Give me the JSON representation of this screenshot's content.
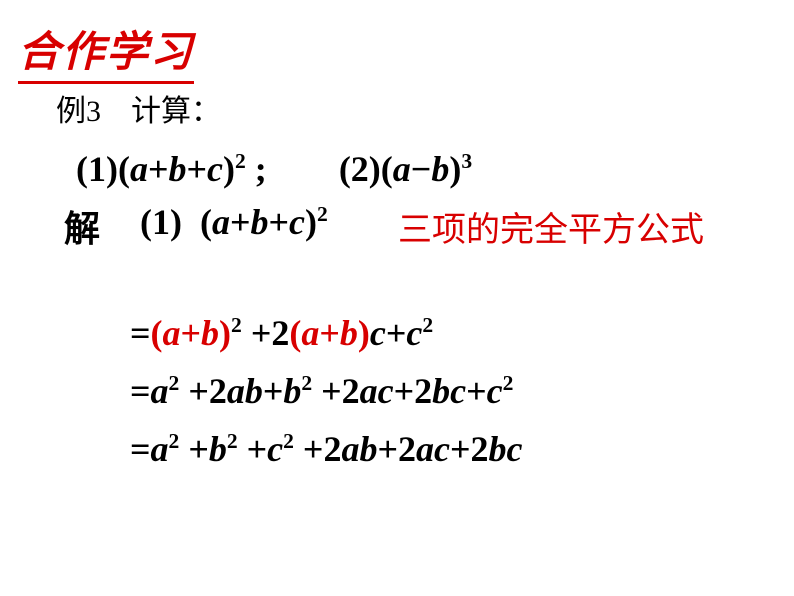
{
  "header": {
    "title": "合作学习",
    "color": "#d80000",
    "fontsize_pt": 32
  },
  "example": {
    "label": "例3　计算：",
    "color": "#000000",
    "fontsize_pt": 22
  },
  "problems": {
    "p1_num": "(1)",
    "p1_open": "(",
    "p1_a": "a",
    "p1_plus1": "+",
    "p1_b": "b",
    "p1_plus2": "+",
    "p1_c": "c",
    "p1_close": ")",
    "p1_exp": "2",
    "p1_semi": " ;",
    "gap": "　　",
    "p2_num": "(2)",
    "p2_open": "(",
    "p2_a": "a",
    "p2_minus": "−",
    "p2_b": "b",
    "p2_close": ")",
    "p2_exp": "3"
  },
  "solution": {
    "label": "解",
    "num": "(1)",
    "expr_open": "(",
    "expr_a": "a",
    "expr_p1": "+",
    "expr_b": "b",
    "expr_p2": "+",
    "expr_c": "c",
    "expr_close": ")",
    "expr_exp": "2",
    "formula_name": "三项的完全平方公式",
    "formula_color": "#d80000"
  },
  "steps": {
    "s1": {
      "eq": "=",
      "g1_open": "(",
      "g1_a": "a",
      "g1_plus": "+",
      "g1_b": "b",
      "g1_close": ")",
      "g1_exp": "2",
      "plus1": " +",
      "two": "2",
      "g2_open": "(",
      "g2_a": "a",
      "g2_plus": "+",
      "g2_b": "b",
      "g2_close": ")",
      "c": "c",
      "plus2": "+",
      "c2": "c",
      "c2_exp": "2",
      "group_color": "#d80000"
    },
    "s2": {
      "eq": "=",
      "a": "a",
      "a_exp": "2",
      "p1": " +",
      "two1": "2",
      "ab_a": "a",
      "ab_b": "b",
      "p2": "+",
      "b": "b",
      "b_exp": "2",
      "p3": " +",
      "two2": "2",
      "ac_a": "a",
      "ac_c": "c",
      "p4": "+",
      "two3": "2",
      "bc_b": "b",
      "bc_c": "c",
      "p5": "+",
      "c": "c",
      "c_exp": "2"
    },
    "s3": {
      "eq": "=",
      "a": "a",
      "a_exp": "2",
      "p1": " +",
      "b": "b",
      "b_exp": "2",
      "p2": " +",
      "c": "c",
      "c_exp": "2",
      "p3": " +",
      "two1": "2",
      "ab_a": "a",
      "ab_b": "b",
      "p4": "+",
      "two2": "2",
      "ac_a": "a",
      "ac_c": "c",
      "p5": "+",
      "two3": "2",
      "bc_b": "b",
      "bc_c": "c"
    }
  },
  "colors": {
    "red": "#d80000",
    "black": "#000000",
    "background": "#ffffff"
  }
}
